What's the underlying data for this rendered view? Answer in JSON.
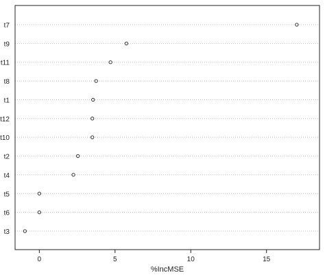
{
  "chart_data": {
    "type": "scatter",
    "subtype": "dotchart",
    "xlabel": "%IncMSE",
    "ylabel": "",
    "xlim": [
      -1.6,
      18.5
    ],
    "xticks": [
      0,
      5,
      10,
      15
    ],
    "grid": true,
    "grid_style": "dotted horizontal",
    "categories": [
      "t7",
      "t9",
      "t11",
      "t8",
      "t1",
      "t12",
      "t10",
      "t2",
      "t4",
      "t5",
      "t6",
      "t3"
    ],
    "values": [
      17.0,
      5.75,
      4.7,
      3.75,
      3.55,
      3.5,
      3.5,
      2.55,
      2.25,
      0.0,
      0.0,
      -0.95
    ],
    "marker": "open-circle",
    "colors": {
      "frame": "#222222",
      "grid": "#bfbfbf",
      "marker": "#222222"
    }
  }
}
